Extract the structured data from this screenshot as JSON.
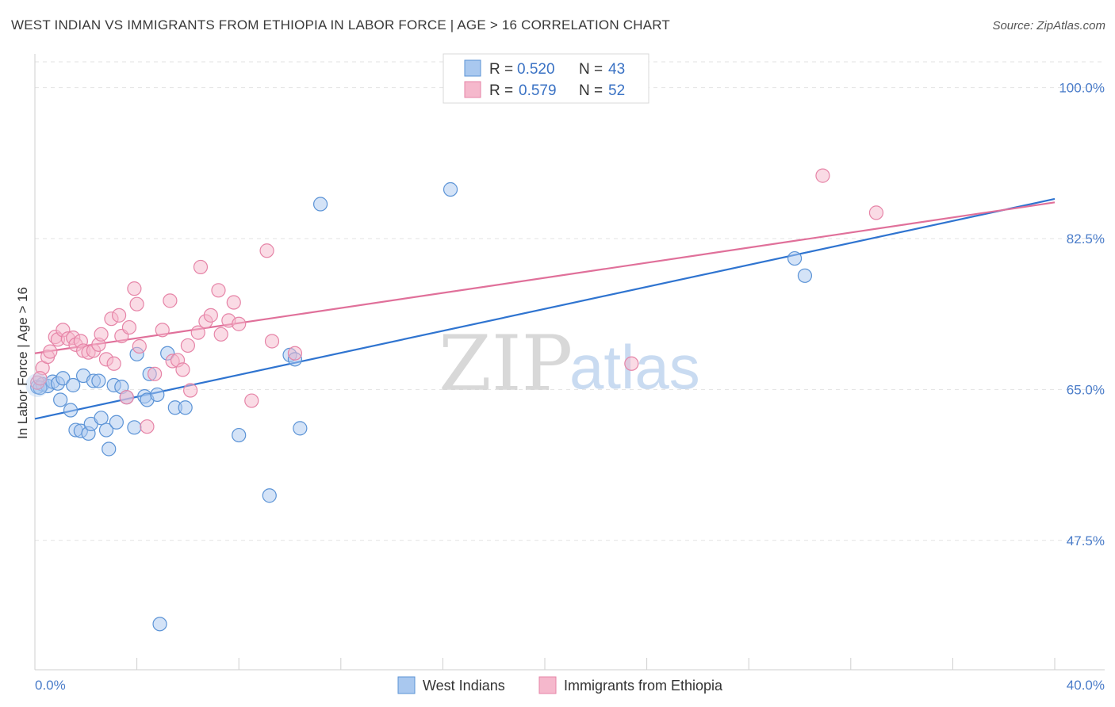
{
  "title": "WEST INDIAN VS IMMIGRANTS FROM ETHIOPIA IN LABOR FORCE | AGE > 16 CORRELATION CHART",
  "source": "Source: ZipAtlas.com",
  "watermark": {
    "zip": "ZIP",
    "atlas": "atlas"
  },
  "colors": {
    "blue_fill": "#a9c8ef",
    "blue_stroke": "#5b93d6",
    "blue_line": "#2f74d0",
    "pink_fill": "#f5b8cc",
    "pink_stroke": "#e684a7",
    "pink_line": "#e0709a",
    "tick_text": "#4a7cc9",
    "grid": "#e3e3e3"
  },
  "legend": {
    "rows": [
      {
        "r_label": "R =",
        "r_value": "0.520",
        "n_label": "N =",
        "n_value": "43"
      },
      {
        "r_label": "R =",
        "r_value": "0.579",
        "n_label": "N =",
        "n_value": "52"
      }
    ]
  },
  "bottom_legend": [
    "West Indians",
    "Immigrants from Ethiopia"
  ],
  "chart_data": {
    "type": "scatter",
    "xlabel": "",
    "ylabel": "In Labor Force | Age > 16",
    "xlim": [
      0,
      40
    ],
    "ylim": [
      32.5,
      103
    ],
    "x_tick_labels": [
      "0.0%",
      "40.0%"
    ],
    "y_ticks": [
      100,
      82.5,
      65,
      47.5
    ],
    "y_tick_labels": [
      "100.0%",
      "82.5%",
      "65.0%",
      "47.5%"
    ],
    "grid": "horizontal dashed",
    "legend_placement": "top-center",
    "series": [
      {
        "name": "West Indians",
        "color": "blue",
        "trend": {
          "x": [
            0,
            40
          ],
          "y": [
            61.6,
            87.1
          ]
        },
        "points": [
          [
            0.1,
            65.3
          ],
          [
            0.3,
            65.6
          ],
          [
            0.5,
            65.4
          ],
          [
            0.7,
            65.9
          ],
          [
            0.9,
            65.7
          ],
          [
            1.0,
            63.8
          ],
          [
            1.1,
            66.3
          ],
          [
            1.4,
            62.6
          ],
          [
            1.5,
            65.5
          ],
          [
            1.6,
            60.3
          ],
          [
            1.8,
            60.2
          ],
          [
            1.9,
            66.6
          ],
          [
            2.1,
            59.9
          ],
          [
            2.2,
            61.0
          ],
          [
            2.3,
            66.0
          ],
          [
            2.5,
            66.0
          ],
          [
            2.6,
            61.7
          ],
          [
            2.8,
            60.3
          ],
          [
            2.9,
            58.1
          ],
          [
            3.1,
            65.5
          ],
          [
            3.2,
            61.2
          ],
          [
            3.4,
            65.3
          ],
          [
            3.6,
            64.1
          ],
          [
            3.9,
            60.6
          ],
          [
            4.0,
            69.1
          ],
          [
            4.3,
            64.2
          ],
          [
            4.4,
            63.8
          ],
          [
            4.5,
            66.8
          ],
          [
            4.8,
            64.4
          ],
          [
            4.9,
            37.8
          ],
          [
            5.2,
            69.2
          ],
          [
            5.5,
            62.9
          ],
          [
            5.9,
            62.9
          ],
          [
            8.0,
            59.7
          ],
          [
            9.2,
            52.7
          ],
          [
            10.0,
            69.0
          ],
          [
            10.2,
            68.5
          ],
          [
            10.4,
            60.5
          ],
          [
            11.2,
            86.5
          ],
          [
            16.3,
            88.2
          ],
          [
            29.8,
            80.2
          ],
          [
            30.2,
            78.2
          ],
          [
            0.2,
            65.2
          ]
        ]
      },
      {
        "name": "Immigrants from Ethiopia",
        "color": "pink",
        "trend": {
          "x": [
            0,
            40
          ],
          "y": [
            69.2,
            86.7
          ]
        },
        "points": [
          [
            0.1,
            65.8
          ],
          [
            0.3,
            67.5
          ],
          [
            0.5,
            68.8
          ],
          [
            0.6,
            69.4
          ],
          [
            0.8,
            71.1
          ],
          [
            0.9,
            70.8
          ],
          [
            1.1,
            71.9
          ],
          [
            1.3,
            70.9
          ],
          [
            1.5,
            71.0
          ],
          [
            1.6,
            70.2
          ],
          [
            1.8,
            70.6
          ],
          [
            1.9,
            69.5
          ],
          [
            2.1,
            69.3
          ],
          [
            2.3,
            69.5
          ],
          [
            2.5,
            70.2
          ],
          [
            2.6,
            71.4
          ],
          [
            2.8,
            68.5
          ],
          [
            3.0,
            73.2
          ],
          [
            3.1,
            68.0
          ],
          [
            3.3,
            73.6
          ],
          [
            3.4,
            71.2
          ],
          [
            3.6,
            64.1
          ],
          [
            3.7,
            72.2
          ],
          [
            3.9,
            76.7
          ],
          [
            4.0,
            74.9
          ],
          [
            4.1,
            70.0
          ],
          [
            4.4,
            60.7
          ],
          [
            4.7,
            66.8
          ],
          [
            5.0,
            71.9
          ],
          [
            5.3,
            75.3
          ],
          [
            5.4,
            68.3
          ],
          [
            5.6,
            68.4
          ],
          [
            5.8,
            67.3
          ],
          [
            6.0,
            70.1
          ],
          [
            6.1,
            64.9
          ],
          [
            6.4,
            71.6
          ],
          [
            6.5,
            79.2
          ],
          [
            6.7,
            72.9
          ],
          [
            6.9,
            73.6
          ],
          [
            7.2,
            76.5
          ],
          [
            7.3,
            71.4
          ],
          [
            7.6,
            73.0
          ],
          [
            7.8,
            75.1
          ],
          [
            8.0,
            72.6
          ],
          [
            8.5,
            63.7
          ],
          [
            9.1,
            81.1
          ],
          [
            9.3,
            70.6
          ],
          [
            10.2,
            69.2
          ],
          [
            23.4,
            68.0
          ],
          [
            30.9,
            89.8
          ],
          [
            33.0,
            85.5
          ],
          [
            0.2,
            66.3
          ]
        ]
      }
    ]
  }
}
